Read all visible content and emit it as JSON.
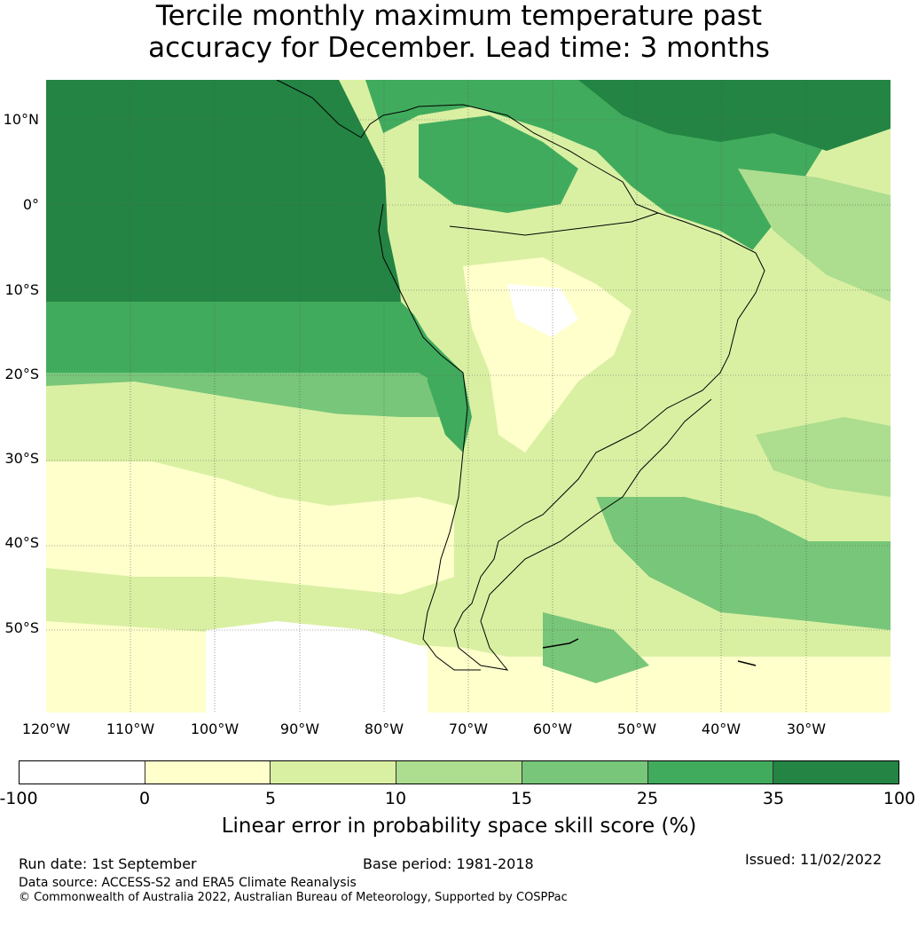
{
  "title": {
    "line1": "Tercile monthly maximum temperature past",
    "line2": "accuracy for December. Lead time: 3 months"
  },
  "map": {
    "lat_labels": [
      "10°N",
      "0°",
      "10°S",
      "20°S",
      "30°S",
      "40°S",
      "50°S"
    ],
    "lon_labels": [
      "120°W",
      "110°W",
      "100°W",
      "90°W",
      "80°W",
      "70°W",
      "60°W",
      "50°W",
      "40°W",
      "30°W"
    ],
    "colors": {
      "c_neg": "#ffffff",
      "c_0_5": "#ffffcc",
      "c_5_10": "#d9f0a3",
      "c_10_15": "#addd8e",
      "c_15_25": "#78c679",
      "c_25_35": "#41ab5d",
      "c_35_100": "#238443",
      "coast": "#000000",
      "grid": "#555555"
    }
  },
  "colorbar": {
    "ticks": [
      "-100",
      "0",
      "5",
      "10",
      "15",
      "25",
      "35",
      "100"
    ],
    "colors": [
      "#ffffff",
      "#ffffcc",
      "#d9f0a3",
      "#addd8e",
      "#78c679",
      "#41ab5d",
      "#238443"
    ],
    "label": "Linear error in probability space skill score (%)"
  },
  "footer": {
    "run_date": "Run date: 1st September",
    "base_period": "Base period: 1981-2018",
    "issued": "Issued: 11/02/2022",
    "data_source": "Data source: ACCESS-S2 and ERA5 Climate Reanalysis",
    "copyright": "© Commonwealth of Australia 2022, Australian Bureau of Meteorology, Supported by COSPPac"
  }
}
